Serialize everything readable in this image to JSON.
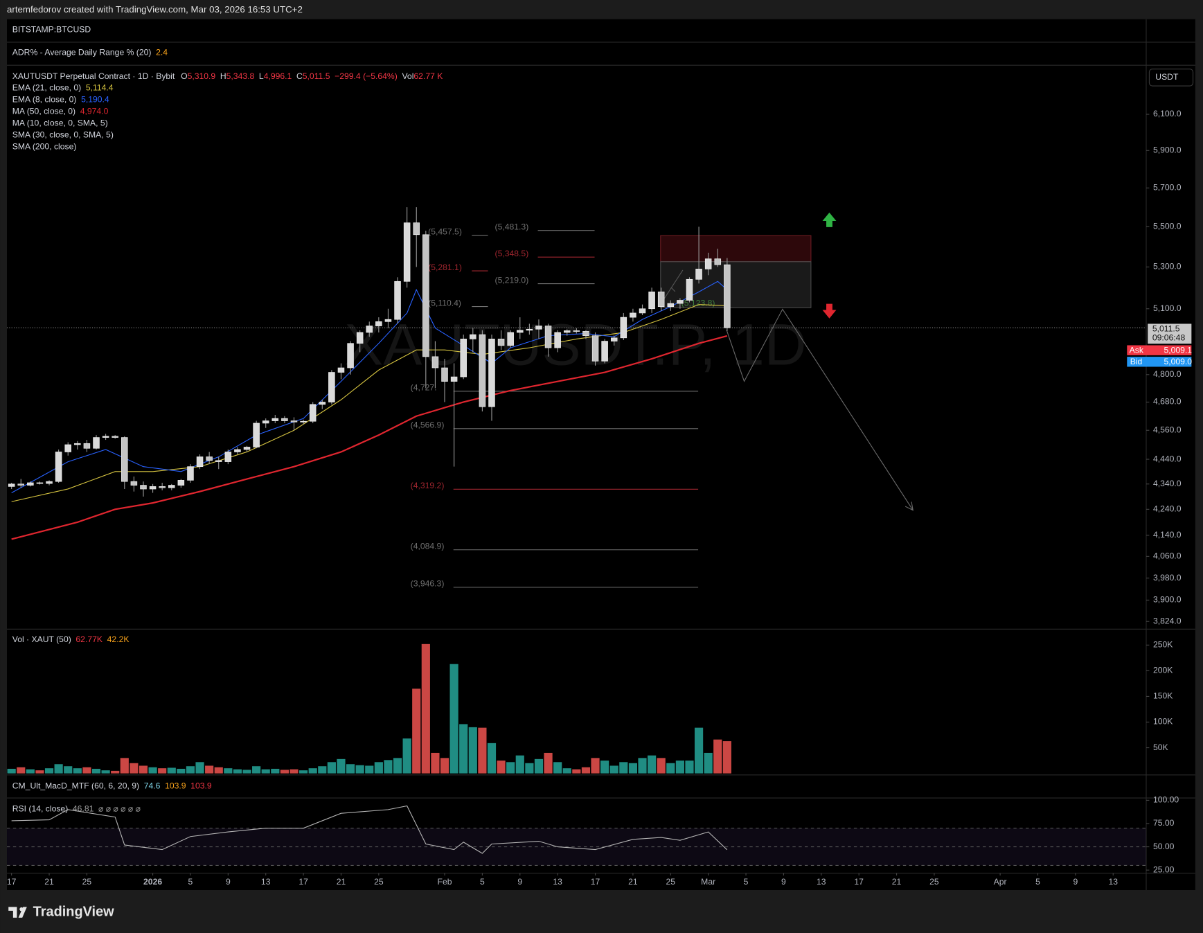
{
  "header": {
    "credit": "artemfedorov created with TradingView.com, Mar 03, 2026 16:53 UTC+2",
    "symbol_pane": "BITSTAMP:BTCUSD",
    "adr_label": "ADR% - Average Daily Range % (20)",
    "adr_value": "2.4"
  },
  "quote": {
    "title": "XAUTUSDT Perpetual Contract · 1D · Bybit",
    "o_key": "O",
    "o": "5,310.9",
    "h_key": "H",
    "h": "5,343.8",
    "l_key": "L",
    "l": "4,996.1",
    "c_key": "C",
    "c": "5,011.5",
    "change": "−299.4 (−5.64%)",
    "vol_key": "Vol",
    "vol": "62.77 K"
  },
  "other_indicators": [
    "MA (10, close, 0, SMA, 5)",
    "SMA (30, close, 0, SMA, 5)",
    "SMA (200, close)"
  ],
  "watermark": "XAUTUSDT.P, 1D",
  "currency_button": "USDT",
  "price_box": {
    "value_label": "5,011.5",
    "countdown": "09:06:48",
    "ask_label": "Ask",
    "ask": "5,009.1",
    "bid_label": "Bid",
    "bid": "5,009.0"
  },
  "macd": {
    "name": "CM_Ult_MacD_MTF (60, 6, 20, 9)",
    "v1": "74.6",
    "v2": "103.9",
    "v3": "103.9"
  },
  "footer": {
    "brand": "TradingView"
  },
  "drawings": {
    "fib_a": [
      {
        "value": 5457.5,
        "label": "(5,457.5)",
        "color": "#707070"
      },
      {
        "value": 5281.1,
        "label": "(5,281.1)",
        "color": "#a0262f"
      },
      {
        "value": 5110.4,
        "label": "(5,110.4)",
        "color": "#707070"
      }
    ],
    "fib_b": [
      {
        "value": 5481.3,
        "label": "(5,481.3)",
        "color": "#707070"
      },
      {
        "value": 5348.5,
        "label": "(5,348.5)",
        "color": "#a0262f"
      },
      {
        "value": 5219.0,
        "label": "(5,219.0)",
        "color": "#707070"
      }
    ],
    "fib_c": [
      {
        "value": 4727,
        "label": "(4,727.",
        "color": "#707070"
      },
      {
        "value": 4566.9,
        "label": "(4,566.9)",
        "color": "#707070"
      },
      {
        "value": 4319.2,
        "label": "(4,319.2)",
        "color": "#a0262f"
      },
      {
        "value": 4084.9,
        "label": "(4,084.9)",
        "color": "#707070"
      },
      {
        "value": 3946.3,
        "label": "(3,946.3)",
        "color": "#707070"
      }
    ],
    "box_label": {
      "value": 5123.8,
      "label": "(5,123.8)",
      "color": "#3f7f3d"
    }
  },
  "chart_data": [
    {
      "type": "candlestick",
      "log": true,
      "grid": false,
      "up_color": "#dadada",
      "down_color": "#c4c4c4",
      "wick_color": "#9a9a9a",
      "xlim": [
        "2025-12-17",
        "2026-04-17"
      ],
      "ylim": [
        3797,
        6382
      ],
      "yticks": [
        {
          "value": 6100,
          "label": "6,100.0"
        },
        {
          "value": 5900,
          "label": "5,900.0"
        },
        {
          "value": 5700,
          "label": "5,700.0"
        },
        {
          "value": 5500,
          "label": "5,500.0"
        },
        {
          "value": 5300,
          "label": "5,300.0"
        },
        {
          "value": 5100,
          "label": "5,100.0"
        },
        {
          "value": 4800,
          "label": "4,800.0"
        },
        {
          "value": 4680,
          "label": "4,680.0"
        },
        {
          "value": 4560,
          "label": "4,560.0"
        },
        {
          "value": 4440,
          "label": "4,440.0"
        },
        {
          "value": 4340,
          "label": "4,340.0"
        },
        {
          "value": 4240,
          "label": "4,240.0"
        },
        {
          "value": 4140,
          "label": "4,140.0"
        },
        {
          "value": 4060,
          "label": "4,060.0"
        },
        {
          "value": 3980,
          "label": "3,980.0"
        },
        {
          "value": 3900,
          "label": "3,900.0"
        },
        {
          "value": 3824,
          "label": "3,824.0"
        }
      ],
      "xticks": [
        {
          "value": "2025-12-17",
          "label": "17"
        },
        {
          "value": "2025-12-21",
          "label": "21"
        },
        {
          "value": "2025-12-25",
          "label": "25"
        },
        {
          "value": "2026-01-01",
          "label": "2026"
        },
        {
          "value": "2026-01-05",
          "label": "5"
        },
        {
          "value": "2026-01-09",
          "label": "9"
        },
        {
          "value": "2026-01-13",
          "label": "13"
        },
        {
          "value": "2026-01-17",
          "label": "17"
        },
        {
          "value": "2026-01-21",
          "label": "21"
        },
        {
          "value": "2026-01-25",
          "label": "25"
        },
        {
          "value": "2026-02-01",
          "label": "Feb"
        },
        {
          "value": "2026-02-05",
          "label": "5"
        },
        {
          "value": "2026-02-09",
          "label": "9"
        },
        {
          "value": "2026-02-13",
          "label": "13"
        },
        {
          "value": "2026-02-17",
          "label": "17"
        },
        {
          "value": "2026-02-21",
          "label": "21"
        },
        {
          "value": "2026-02-25",
          "label": "25"
        },
        {
          "value": "2026-03-01",
          "label": "Mar"
        },
        {
          "value": "2026-03-05",
          "label": "5"
        },
        {
          "value": "2026-03-09",
          "label": "9"
        },
        {
          "value": "2026-03-13",
          "label": "13"
        },
        {
          "value": "2026-03-17",
          "label": "17"
        },
        {
          "value": "2026-03-21",
          "label": "21"
        },
        {
          "value": "2026-03-25",
          "label": "25"
        },
        {
          "value": "2026-04-01",
          "label": "Apr"
        },
        {
          "value": "2026-04-05",
          "label": "5"
        },
        {
          "value": "2026-04-09",
          "label": "9"
        },
        {
          "value": "2026-04-13",
          "label": "13"
        }
      ],
      "x": [
        "2025-12-17",
        "2025-12-18",
        "2025-12-19",
        "2025-12-20",
        "2025-12-21",
        "2025-12-22",
        "2025-12-23",
        "2025-12-24",
        "2025-12-25",
        "2025-12-26",
        "2025-12-27",
        "2025-12-28",
        "2025-12-29",
        "2025-12-30",
        "2025-12-31",
        "2026-01-01",
        "2026-01-02",
        "2026-01-03",
        "2026-01-04",
        "2026-01-05",
        "2026-01-06",
        "2026-01-07",
        "2026-01-08",
        "2026-01-09",
        "2026-01-10",
        "2026-01-11",
        "2026-01-12",
        "2026-01-13",
        "2026-01-14",
        "2026-01-15",
        "2026-01-16",
        "2026-01-17",
        "2026-01-18",
        "2026-01-19",
        "2026-01-20",
        "2026-01-21",
        "2026-01-22",
        "2026-01-23",
        "2026-01-24",
        "2026-01-25",
        "2026-01-26",
        "2026-01-27",
        "2026-01-28",
        "2026-01-29",
        "2026-01-30",
        "2026-01-31",
        "2026-02-01",
        "2026-02-02",
        "2026-02-03",
        "2026-02-04",
        "2026-02-05",
        "2026-02-06",
        "2026-02-07",
        "2026-02-08",
        "2026-02-09",
        "2026-02-10",
        "2026-02-11",
        "2026-02-12",
        "2026-02-13",
        "2026-02-14",
        "2026-02-15",
        "2026-02-16",
        "2026-02-17",
        "2026-02-18",
        "2026-02-19",
        "2026-02-20",
        "2026-02-21",
        "2026-02-22",
        "2026-02-23",
        "2026-02-24",
        "2026-02-25",
        "2026-02-26",
        "2026-02-27",
        "2026-02-28",
        "2026-03-01",
        "2026-03-02",
        "2026-03-03"
      ],
      "open": [
        4330,
        4340,
        4335,
        4345,
        4342,
        4350,
        4470,
        4500,
        4505,
        4485,
        4530,
        4535,
        4530,
        4350,
        4335,
        4320,
        4330,
        4325,
        4335,
        4355,
        4410,
        4450,
        4435,
        4430,
        4470,
        4480,
        4490,
        4590,
        4600,
        4610,
        4600,
        4595,
        4598,
        4670,
        4680,
        4810,
        4830,
        4940,
        4990,
        5020,
        5040,
        5050,
        5230,
        5520,
        5460,
        4880,
        4830,
        4770,
        4790,
        4960,
        4980,
        4660,
        4960,
        4930,
        4990,
        5000,
        5005,
        5020,
        4920,
        4990,
        4998,
        4995,
        4975,
        4860,
        4950,
        4965,
        5060,
        5080,
        5100,
        5180,
        5110,
        5125,
        5140,
        5240,
        5290,
        5340,
        5310.9
      ],
      "high": [
        4345,
        4360,
        4350,
        4350,
        4355,
        4480,
        4510,
        4515,
        4520,
        4540,
        4545,
        4540,
        4535,
        4370,
        4350,
        4340,
        4345,
        4340,
        4360,
        4420,
        4460,
        4470,
        4450,
        4480,
        4490,
        4495,
        4600,
        4610,
        4625,
        4620,
        4615,
        4605,
        4680,
        4690,
        4820,
        4850,
        4950,
        5000,
        5040,
        5060,
        5100,
        5250,
        5600,
        5600,
        5480,
        4950,
        4870,
        4850,
        4980,
        5010,
        5000,
        4980,
        5000,
        5000,
        5060,
        5030,
        5050,
        5030,
        5000,
        5005,
        5010,
        5000,
        4990,
        4960,
        4975,
        5080,
        5100,
        5120,
        5200,
        5200,
        5140,
        5150,
        5250,
        5500,
        5370,
        5390,
        5343.8
      ],
      "low": [
        4320,
        4325,
        4330,
        4338,
        4335,
        4345,
        4455,
        4480,
        4470,
        4480,
        4520,
        4525,
        4320,
        4310,
        4290,
        4305,
        4315,
        4315,
        4325,
        4345,
        4400,
        4420,
        4400,
        4420,
        4460,
        4470,
        4485,
        4570,
        4590,
        4590,
        4560,
        4585,
        4590,
        4650,
        4670,
        4780,
        4800,
        4900,
        4970,
        4990,
        5010,
        5030,
        5200,
        5300,
        4740,
        4740,
        4680,
        4410,
        4780,
        4900,
        4640,
        4600,
        4910,
        4920,
        4960,
        4980,
        4960,
        4880,
        4900,
        4975,
        4985,
        4960,
        4840,
        4850,
        4930,
        4955,
        5040,
        5070,
        5080,
        5090,
        5090,
        5100,
        5130,
        5220,
        5260,
        5300,
        4996.1
      ],
      "close": [
        4340,
        4335,
        4345,
        4342,
        4350,
        4470,
        4500,
        4505,
        4485,
        4530,
        4535,
        4530,
        4350,
        4335,
        4320,
        4330,
        4325,
        4335,
        4355,
        4410,
        4450,
        4435,
        4430,
        4470,
        4480,
        4490,
        4590,
        4600,
        4610,
        4600,
        4595,
        4598,
        4670,
        4680,
        4810,
        4830,
        4940,
        4990,
        5020,
        5040,
        5050,
        5230,
        5520,
        5460,
        4880,
        4830,
        4770,
        4790,
        4960,
        4980,
        4660,
        4960,
        4930,
        4990,
        5000,
        5005,
        5020,
        4920,
        4990,
        4998,
        4995,
        4975,
        4860,
        4950,
        4965,
        5060,
        5080,
        5100,
        5180,
        5110,
        5125,
        5140,
        5240,
        5290,
        5340,
        5310.9,
        5011.5
      ],
      "series": [
        {
          "name": "EMA (21, close, 0)",
          "color": "#d6c440",
          "width": 1,
          "last_label": "5,114.4",
          "x": [
            "2025-12-17",
            "2025-12-23",
            "2025-12-28",
            "2026-01-01",
            "2026-01-06",
            "2026-01-11",
            "2026-01-16",
            "2026-01-21",
            "2026-01-25",
            "2026-01-29",
            "2026-02-01",
            "2026-02-05",
            "2026-02-10",
            "2026-02-15",
            "2026-02-20",
            "2026-02-24",
            "2026-02-28",
            "2026-03-03"
          ],
          "values": [
            4270,
            4320,
            4390,
            4390,
            4410,
            4470,
            4560,
            4690,
            4820,
            4910,
            4910,
            4890,
            4920,
            4960,
            4990,
            5050,
            5120,
            5114.4
          ]
        },
        {
          "name": "EMA (8, close, 0)",
          "color": "#2962ff",
          "width": 1,
          "last_label": "5,190.4",
          "x": [
            "2025-12-17",
            "2025-12-23",
            "2025-12-27",
            "2025-12-31",
            "2026-01-04",
            "2026-01-08",
            "2026-01-12",
            "2026-01-17",
            "2026-01-21",
            "2026-01-25",
            "2026-01-28",
            "2026-01-29",
            "2026-01-31",
            "2026-02-03",
            "2026-02-06",
            "2026-02-08",
            "2026-02-12",
            "2026-02-16",
            "2026-02-19",
            "2026-02-22",
            "2026-02-25",
            "2026-02-28",
            "2026-03-02",
            "2026-03-03"
          ],
          "values": [
            4305,
            4430,
            4480,
            4410,
            4390,
            4450,
            4540,
            4610,
            4770,
            4940,
            5080,
            5190,
            5010,
            4930,
            4850,
            4920,
            4975,
            4985,
            4970,
            5050,
            5110,
            5180,
            5230,
            5190.4
          ]
        },
        {
          "name": "MA (50, close, 0)",
          "color": "#e0262f",
          "width": 2,
          "last_label": "4,974.0",
          "x": [
            "2025-12-17",
            "2025-12-24",
            "2025-12-28",
            "2026-01-01",
            "2026-01-06",
            "2026-01-11",
            "2026-01-16",
            "2026-01-21",
            "2026-01-25",
            "2026-01-29",
            "2026-02-03",
            "2026-02-08",
            "2026-02-13",
            "2026-02-18",
            "2026-02-23",
            "2026-02-28",
            "2026-03-03"
          ],
          "values": [
            4125,
            4190,
            4240,
            4265,
            4310,
            4360,
            4410,
            4470,
            4540,
            4620,
            4680,
            4730,
            4770,
            4810,
            4870,
            4940,
            4974.0
          ]
        }
      ]
    },
    {
      "type": "bar",
      "title": "Vol · XAUT (50)",
      "value_label": "62.77K",
      "ma_label": "42.2K",
      "up_color": "#26a69a",
      "down_color": "#ef5350",
      "ylim": [
        0,
        281000
      ],
      "yticks": [
        {
          "value": 250000,
          "label": "250K"
        },
        {
          "value": 200000,
          "label": "200K"
        },
        {
          "value": 150000,
          "label": "150K"
        },
        {
          "value": 100000,
          "label": "100K"
        },
        {
          "value": 50000,
          "label": "50K"
        }
      ],
      "values": [
        9000,
        12000,
        8000,
        6000,
        10000,
        18000,
        14000,
        10000,
        12000,
        9000,
        6000,
        5000,
        30000,
        20000,
        15000,
        12000,
        10000,
        11000,
        9000,
        14000,
        22000,
        15000,
        12000,
        10000,
        8000,
        7000,
        14000,
        8000,
        9000,
        7000,
        8000,
        6000,
        10000,
        14000,
        22000,
        28000,
        18000,
        16000,
        15000,
        22000,
        26000,
        30000,
        68000,
        165000,
        252000,
        40000,
        30000,
        213000,
        96000,
        90000,
        89000,
        59000,
        25000,
        22000,
        35000,
        20000,
        28000,
        40000,
        22000,
        10000,
        8000,
        12000,
        30000,
        25000,
        15000,
        22000,
        20000,
        30000,
        35000,
        30000,
        20000,
        25000,
        25000,
        89000,
        40000,
        66000,
        62770
      ]
    },
    {
      "type": "line",
      "title": "RSI (14, close)",
      "value_label": "46.81",
      "extra": "⌀ ⌀ ⌀ ⌀ ⌀ ⌀",
      "color": "#b4b4b4",
      "ylim": [
        21.7,
        102.5
      ],
      "yticks": [
        {
          "value": 100,
          "label": "100.00"
        },
        {
          "value": 75,
          "label": "75.00"
        },
        {
          "value": 50,
          "label": "50.00"
        },
        {
          "value": 25,
          "label": "25.00"
        }
      ],
      "bands": [
        70,
        50,
        30
      ],
      "x": [
        "2025-12-17",
        "2025-12-21",
        "2025-12-23",
        "2025-12-28",
        "2025-12-29",
        "2026-01-02",
        "2026-01-05",
        "2026-01-09",
        "2026-01-13",
        "2026-01-17",
        "2026-01-21",
        "2026-01-26",
        "2026-01-28",
        "2026-01-30",
        "2026-02-02",
        "2026-02-03",
        "2026-02-05",
        "2026-02-06",
        "2026-02-11",
        "2026-02-13",
        "2026-02-17",
        "2026-02-21",
        "2026-02-24",
        "2026-02-26",
        "2026-03-01",
        "2026-03-03"
      ],
      "values": [
        78,
        79,
        90,
        82,
        52,
        47,
        61,
        66,
        70,
        70,
        86,
        90,
        94,
        53,
        47,
        55,
        43,
        53,
        56,
        50,
        47,
        58,
        60,
        57,
        66,
        46.81
      ]
    }
  ]
}
